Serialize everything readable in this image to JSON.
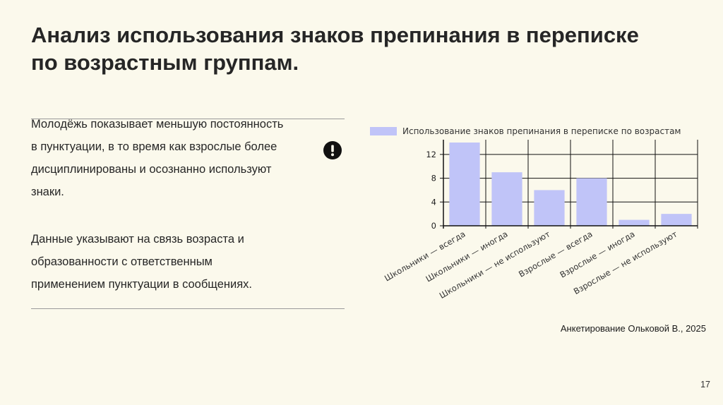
{
  "slide": {
    "title": "Анализ использования знаков препинания в переписке по возрастным группам.",
    "paragraph_1_lines": [
      "Молодёжь показывает меньшую постоянность",
      "в пунктуации, в то время как взрослые более",
      "дисциплинированы и осознанно используют",
      "знаки."
    ],
    "paragraph_2_lines": [
      "Данные указывают на связь возраста и",
      "образованности с ответственным",
      "применением пунктуации в сообщениях."
    ],
    "source": "Анкетирование Ольковой В., 2025",
    "page_number": "17",
    "alert_icon": "exclamation-circle-icon"
  },
  "chart_data": {
    "type": "bar",
    "categories": [
      "Школьники — всегда",
      "Школьники — иногда",
      "Школьники — не используют",
      "Взрослые — всегда",
      "Взрослые — иногда",
      "Взрослые — не используют"
    ],
    "series": [
      {
        "name": "Использование знаков препинания в переписке по возрастам",
        "values": [
          14,
          9,
          6,
          8,
          1,
          2
        ],
        "color": "#c0c4f8"
      }
    ],
    "ylim": [
      0,
      14
    ],
    "yticks": [
      0,
      4,
      8,
      12
    ],
    "grid": true,
    "legend": "top-left",
    "xlabel": "",
    "ylabel": ""
  }
}
